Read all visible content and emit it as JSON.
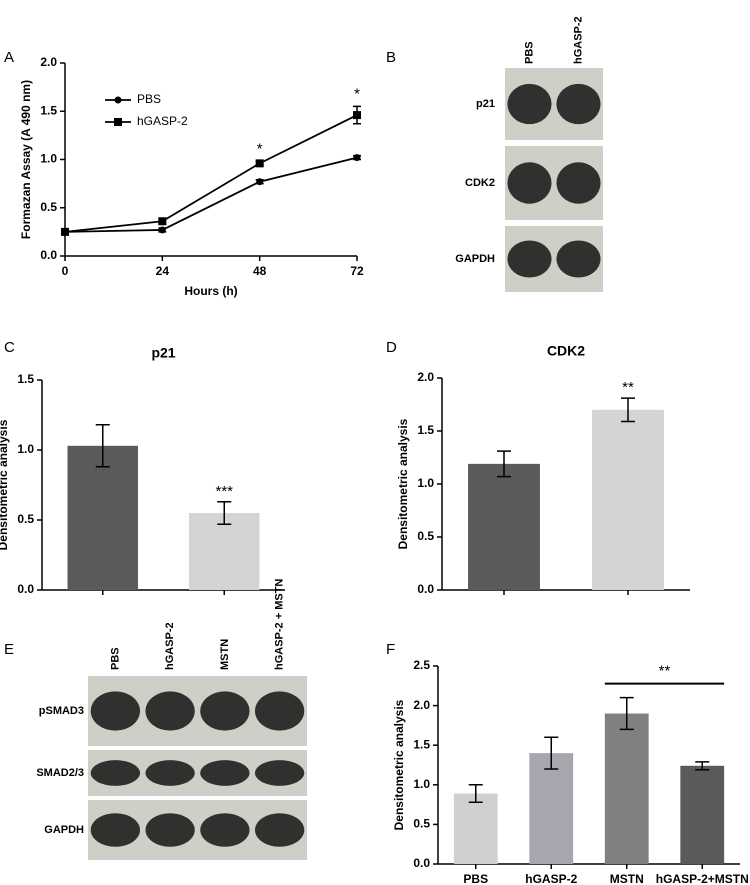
{
  "panel_labels": [
    "A",
    "B",
    "C",
    "D",
    "E",
    "F"
  ],
  "blots": [
    {
      "lanes": [
        "PBS",
        "hGASP-2"
      ],
      "rows": [
        "p21",
        "CDK2",
        "GAPDH"
      ]
    },
    {
      "lanes": [
        "PBS",
        "hGASP-2",
        "MSTN",
        "hGASP-2 + MSTN"
      ],
      "rows": [
        "pSMAD3",
        "SMAD2/3",
        "GAPDH"
      ]
    }
  ],
  "chart_data": [
    {
      "type": "line",
      "xlabel": "Hours (h)",
      "ylabel": "Formazan Assay (A 490 nm)",
      "x": [
        0,
        24,
        48,
        72
      ],
      "xlim": [
        0,
        72
      ],
      "xticks": [
        0,
        24,
        48,
        72
      ],
      "ylim": [
        0,
        2
      ],
      "yticks": [
        {
          "value": 0,
          "label": "0.0"
        },
        0.5,
        {
          "value": 1,
          "label": "1.0"
        },
        1.5,
        {
          "value": 2,
          "label": "2.0"
        }
      ],
      "legend": "upper left",
      "series": [
        {
          "name": "PBS",
          "color": "#000000",
          "marker": "circle",
          "values": [
            0.25,
            0.27,
            0.77,
            1.02
          ],
          "errors": [
            0.01,
            0.02,
            0.02,
            0.02
          ]
        },
        {
          "name": "hGASP-2",
          "color": "#000000",
          "marker": "square",
          "values": [
            0.25,
            0.36,
            0.96,
            1.46
          ],
          "errors": [
            0.01,
            0.03,
            0.02,
            0.09
          ],
          "significance": [
            null,
            null,
            "*",
            "*"
          ]
        }
      ]
    },
    {
      "type": "bar",
      "title": "p21",
      "ylabel": "Densitometric analysis",
      "categories": [
        null,
        null
      ],
      "values": [
        1.03,
        0.55
      ],
      "errors": [
        0.15,
        0.08
      ],
      "colors": [
        "#5a5a5a",
        "#d4d4d4"
      ],
      "significance": [
        null,
        "***"
      ],
      "ylim": [
        0,
        1.5
      ],
      "yticks": [
        {
          "value": 0,
          "label": "0.0"
        },
        0.5,
        {
          "value": 1,
          "label": "1.0"
        },
        1.5
      ]
    },
    {
      "type": "bar",
      "title": "CDK2",
      "ylabel": "Densitometric analysis",
      "categories": [
        null,
        null
      ],
      "values": [
        1.19,
        1.7
      ],
      "errors": [
        0.12,
        0.11
      ],
      "colors": [
        "#5a5a5a",
        "#d4d4d4"
      ],
      "significance": [
        null,
        "**"
      ],
      "ylim": [
        0,
        2
      ],
      "yticks": [
        {
          "value": 0,
          "label": "0.0"
        },
        0.5,
        {
          "value": 1,
          "label": "1.0"
        },
        1.5,
        {
          "value": 2,
          "label": "2.0"
        }
      ]
    },
    {
      "type": "bar",
      "ylabel": "Densitometric analysis",
      "categories": [
        "PBS",
        "hGASP-2",
        "MSTN",
        "hGASP-2+MSTN"
      ],
      "values": [
        0.89,
        1.4,
        1.9,
        1.24
      ],
      "errors": [
        0.11,
        0.2,
        0.2,
        0.05
      ],
      "colors": [
        "#d0d0d0",
        "#a6a6ae",
        "#808080",
        "#5a5a5a"
      ],
      "comparisons": [
        {
          "categories": [
            "MSTN",
            "hGASP-2+MSTN"
          ],
          "label": "**"
        }
      ],
      "ylim": [
        0,
        2.5
      ],
      "yticks": [
        {
          "value": 0,
          "label": "0.0"
        },
        0.5,
        {
          "value": 1,
          "label": "1.0"
        },
        1.5,
        {
          "value": 2,
          "label": "2.0"
        },
        2.5
      ]
    }
  ]
}
